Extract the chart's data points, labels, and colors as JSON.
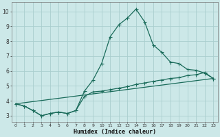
{
  "xlabel": "Humidex (Indice chaleur)",
  "bg_color": "#cce8e8",
  "grid_color": "#aacece",
  "line_color": "#1a6b5a",
  "xlim": [
    -0.5,
    23.5
  ],
  "ylim": [
    2.6,
    10.6
  ],
  "xtick_vals": [
    0,
    1,
    2,
    3,
    4,
    5,
    6,
    7,
    8,
    9,
    10,
    11,
    12,
    13,
    14,
    15,
    16,
    17,
    18,
    19,
    20,
    21,
    22,
    23
  ],
  "ytick_vals": [
    3,
    4,
    5,
    6,
    7,
    8,
    9,
    10
  ],
  "series1_x": [
    0,
    1,
    2,
    3,
    4,
    5,
    6,
    7,
    8,
    9,
    10,
    11,
    12,
    13,
    14,
    15,
    16,
    17,
    18,
    19,
    20,
    21,
    22,
    23
  ],
  "series1_y": [
    3.8,
    3.65,
    3.35,
    3.0,
    3.15,
    3.25,
    3.15,
    3.35,
    4.65,
    5.4,
    6.5,
    8.3,
    9.1,
    9.55,
    10.15,
    9.3,
    7.75,
    7.25,
    6.6,
    6.5,
    6.1,
    6.05,
    5.85,
    5.5
  ],
  "series2_x": [
    0,
    1,
    2,
    3,
    4,
    5,
    6,
    7,
    8,
    9,
    10,
    11,
    12,
    13,
    14,
    15,
    16,
    17,
    18,
    19,
    20,
    21,
    22,
    23
  ],
  "series2_y": [
    3.8,
    3.65,
    3.35,
    3.0,
    3.15,
    3.25,
    3.15,
    3.35,
    4.3,
    4.6,
    4.65,
    4.75,
    4.85,
    4.95,
    5.1,
    5.2,
    5.3,
    5.4,
    5.5,
    5.55,
    5.7,
    5.75,
    5.9,
    5.5
  ],
  "series3_x": [
    0,
    23
  ],
  "series3_y": [
    3.8,
    5.5
  ]
}
